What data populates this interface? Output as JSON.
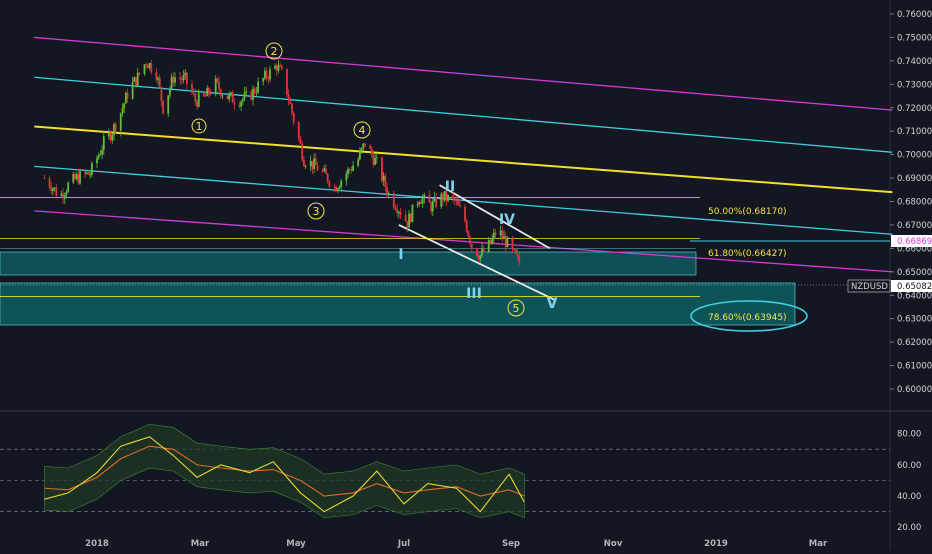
{
  "chart_data": [
    {
      "type": "candlestick",
      "symbol": "NZDUSD",
      "last_price": 0.65082,
      "last_price_label": "0.65082",
      "marker_price": 0.66869,
      "marker_price_label": "0.66869",
      "y_ticks": [
        "0.76000",
        "0.75000",
        "0.74000",
        "0.73000",
        "0.72000",
        "0.71000",
        "0.70000",
        "0.69000",
        "0.68000",
        "0.67000",
        "0.66000",
        "0.65000",
        "0.64000",
        "0.63000",
        "0.62000",
        "0.61000",
        "0.60000"
      ],
      "ylim": [
        0.5975,
        0.7625
      ],
      "x_ticks": [
        "2018",
        "Mar",
        "May",
        "Jul",
        "Sep",
        "Nov",
        "2019",
        "Mar"
      ],
      "colors": {
        "up": "#66bb3a",
        "down": "#e0363a",
        "magenta": "#d63ad6",
        "cyan": "#3fcfe0",
        "yellow": "#f2e128",
        "zone": "#0e5a5e"
      },
      "fib_levels": [
        {
          "label": "50.00%(0.68170)",
          "value": 0.6817
        },
        {
          "label": "61.80%(0.66427)",
          "value": 0.66427
        },
        {
          "label": "78.60%(0.63945)",
          "value": 0.63945
        }
      ],
      "wave_labels_numeric": [
        "1",
        "2",
        "3",
        "4",
        "5"
      ],
      "wave_labels_roman": [
        "I",
        "II",
        "III",
        "IV",
        "V"
      ],
      "price_path": [
        [
          "2017-12-01",
          0.69
        ],
        [
          "2017-12-05",
          0.687
        ],
        [
          "2017-12-10",
          0.682
        ],
        [
          "2017-12-15",
          0.687
        ],
        [
          "2017-12-20",
          0.69
        ],
        [
          "2017-12-28",
          0.692
        ],
        [
          "2018-01-05",
          0.705
        ],
        [
          "2018-01-10",
          0.71
        ],
        [
          "2018-01-15",
          0.718
        ],
        [
          "2018-01-20",
          0.728
        ],
        [
          "2018-01-25",
          0.733
        ],
        [
          "2018-01-30",
          0.74
        ],
        [
          "2018-02-05",
          0.735
        ],
        [
          "2018-02-09",
          0.72
        ],
        [
          "2018-02-15",
          0.733
        ],
        [
          "2018-02-22",
          0.732
        ],
        [
          "2018-02-28",
          0.723
        ],
        [
          "2018-03-05",
          0.724
        ],
        [
          "2018-03-12",
          0.73
        ],
        [
          "2018-03-18",
          0.725
        ],
        [
          "2018-03-25",
          0.723
        ],
        [
          "2018-04-01",
          0.725
        ],
        [
          "2018-04-10",
          0.733
        ],
        [
          "2018-04-17",
          0.738
        ],
        [
          "2018-04-21",
          0.733
        ],
        [
          "2018-04-27",
          0.715
        ],
        [
          "2018-05-03",
          0.698
        ],
        [
          "2018-05-10",
          0.695
        ],
        [
          "2018-05-17",
          0.69
        ],
        [
          "2018-05-21",
          0.686
        ],
        [
          "2018-05-28",
          0.692
        ],
        [
          "2018-06-04",
          0.698
        ],
        [
          "2018-06-08",
          0.705
        ],
        [
          "2018-06-15",
          0.696
        ],
        [
          "2018-06-22",
          0.683
        ],
        [
          "2018-06-28",
          0.677
        ],
        [
          "2018-07-03",
          0.671
        ],
        [
          "2018-07-10",
          0.682
        ],
        [
          "2018-07-17",
          0.678
        ],
        [
          "2018-07-24",
          0.682
        ],
        [
          "2018-07-31",
          0.68
        ],
        [
          "2018-08-06",
          0.672
        ],
        [
          "2018-08-10",
          0.661
        ],
        [
          "2018-08-15",
          0.657
        ],
        [
          "2018-08-21",
          0.662
        ],
        [
          "2018-08-25",
          0.668
        ],
        [
          "2018-08-30",
          0.663
        ],
        [
          "2018-09-03",
          0.658
        ],
        [
          "2018-09-06",
          0.655
        ],
        [
          "2018-09-10",
          0.653
        ]
      ],
      "trendlines": [
        {
          "name": "magenta-upper",
          "color": "magenta",
          "p1": [
            "2017-11-25",
            0.75
          ],
          "p2": [
            "2019-04-15",
            0.719
          ]
        },
        {
          "name": "magenta-lower",
          "color": "magenta",
          "p1": [
            "2017-11-25",
            0.676
          ],
          "p2": [
            "2019-04-15",
            0.65
          ]
        },
        {
          "name": "cyan-upper",
          "color": "cyan",
          "p1": [
            "2017-11-25",
            0.733
          ],
          "p2": [
            "2019-04-15",
            0.701
          ]
        },
        {
          "name": "cyan-lower",
          "color": "cyan",
          "p1": [
            "2017-11-25",
            0.695
          ],
          "p2": [
            "2019-04-15",
            0.666
          ]
        },
        {
          "name": "yellow-main",
          "color": "yellow",
          "p1": [
            "2017-11-25",
            0.712
          ],
          "p2": [
            "2019-04-15",
            0.684
          ]
        },
        {
          "name": "white-channel-top",
          "color": "white",
          "p1": [
            "2018-07-22",
            0.687
          ],
          "p2": [
            "2018-09-25",
            0.66
          ]
        },
        {
          "name": "white-channel-bottom",
          "color": "white",
          "p1": [
            "2018-06-28",
            0.67
          ],
          "p2": [
            "2018-09-28",
            0.638
          ]
        }
      ]
    },
    {
      "type": "line",
      "name": "oscillator",
      "y_ticks": [
        "80.00",
        "60.00",
        "40.00",
        "20.00"
      ],
      "ylim": [
        15,
        92
      ],
      "levels": [
        70,
        50,
        30
      ],
      "x": [
        "2017-12-01",
        "2017-12-15",
        "2018-01-01",
        "2018-01-15",
        "2018-02-01",
        "2018-02-15",
        "2018-03-01",
        "2018-03-15",
        "2018-04-01",
        "2018-04-15",
        "2018-05-01",
        "2018-05-15",
        "2018-06-01",
        "2018-06-15",
        "2018-07-01",
        "2018-07-15",
        "2018-08-01",
        "2018-08-15",
        "2018-09-01",
        "2018-09-10"
      ],
      "series": [
        {
          "values": [
            38,
            42,
            55,
            72,
            78,
            66,
            52,
            60,
            55,
            62,
            42,
            30,
            40,
            56,
            35,
            48,
            45,
            30,
            54,
            36
          ]
        },
        {
          "values": [
            45,
            44,
            52,
            64,
            72,
            70,
            60,
            58,
            56,
            57,
            50,
            40,
            42,
            48,
            42,
            44,
            46,
            40,
            44,
            40
          ]
        }
      ]
    }
  ]
}
